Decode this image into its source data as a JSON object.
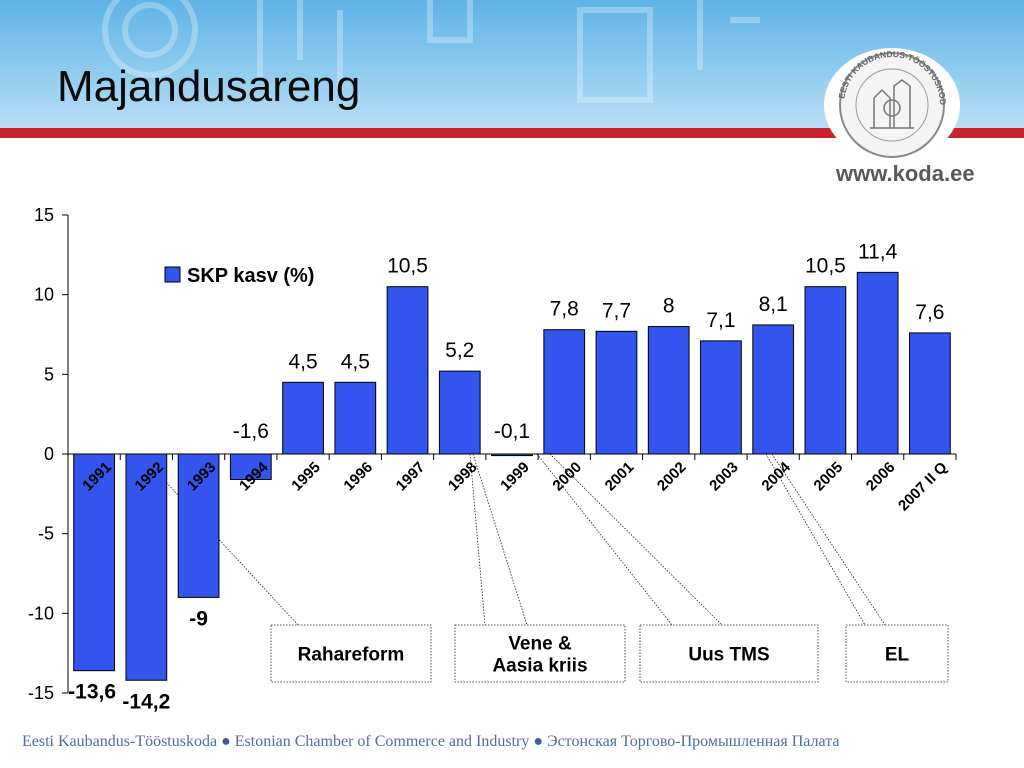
{
  "slide": {
    "title": "Majandusareng",
    "website": "www.koda.ee",
    "seal_text": "EESTI KAUBANDUS-TÖÖSTUSKODA",
    "footer": {
      "items": [
        "Eesti Kaubandus-Tööstuskoda",
        "Estonian Chamber of Commerce and Industry",
        "Эстонская Торгово-Промышленная Палата"
      ],
      "separator": "●"
    }
  },
  "colors": {
    "bar": "#3355ee",
    "header_stripe": "#c8232c",
    "header_bg": "#6fbde9"
  },
  "chart_data": {
    "type": "bar",
    "title": "",
    "xlabel": "",
    "ylabel": "",
    "categories": [
      "1991",
      "1992",
      "1993",
      "1994",
      "1995",
      "1996",
      "1997",
      "1998",
      "1999",
      "2000",
      "2001",
      "2002",
      "2003",
      "2004",
      "2005",
      "2006",
      "2007 II Q"
    ],
    "series": [
      {
        "name": "SKP kasv (%)",
        "values": [
          -13.6,
          -14.2,
          -9,
          -1.6,
          4.5,
          4.5,
          10.5,
          5.2,
          -0.1,
          7.8,
          7.7,
          8,
          7.1,
          8.1,
          10.5,
          11.4,
          7.6
        ],
        "labels": [
          "-13,6",
          "-14,2",
          "-9",
          "-1,6",
          "4,5",
          "4,5",
          "10,5",
          "5,2",
          "-0,1",
          "7,8",
          "7,7",
          "8",
          "7,1",
          "8,1",
          "10,5",
          "11,4",
          "7,6"
        ]
      }
    ],
    "ylim": [
      -15,
      15
    ],
    "yticks": [
      15,
      10,
      5,
      0,
      -5,
      -10,
      -15
    ],
    "grid": false,
    "legend_position": "top-left",
    "annotations": [
      {
        "text": "Rahareform",
        "points_to": [
          "1992"
        ]
      },
      {
        "text": "Vene &\nAasia kriis",
        "points_to": [
          "1998",
          "1999"
        ]
      },
      {
        "text": "Uus TMS",
        "points_to": [
          "1999",
          "2000"
        ]
      },
      {
        "text": "EL",
        "points_to": [
          "2004"
        ]
      }
    ]
  }
}
